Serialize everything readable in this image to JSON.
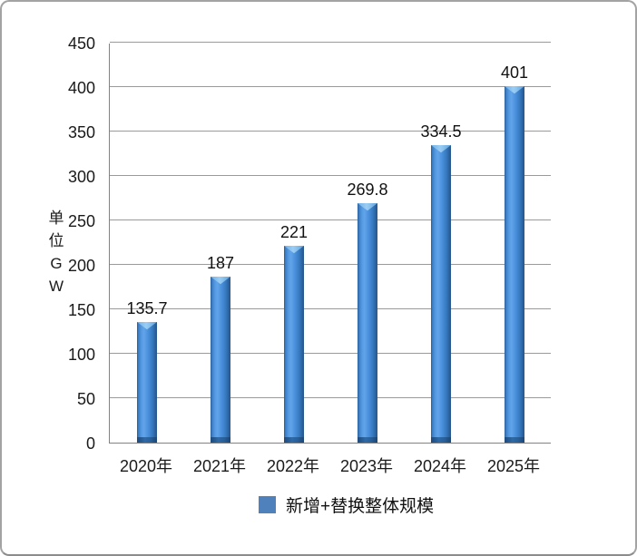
{
  "chart_data": {
    "type": "bar",
    "categories": [
      "2020年",
      "2021年",
      "2022年",
      "2023年",
      "2024年",
      "2025年"
    ],
    "values": [
      135.7,
      187,
      221,
      269.8,
      334.5,
      401
    ],
    "value_labels": [
      "135.7",
      "187",
      "221",
      "269.8",
      "334.5",
      "401"
    ],
    "title": "",
    "xlabel": "",
    "ylabel": "单位GW",
    "ylim": [
      0,
      450
    ],
    "yticks": [
      0,
      50,
      100,
      150,
      200,
      250,
      300,
      350,
      400,
      450
    ],
    "grid": true,
    "legend_label": "新增+替换整体规模",
    "legend_position": "bottom",
    "colors": {
      "bar_main": "#3f87d3",
      "bar_highlight": "#9bcdf4",
      "bar_edge_dark": "#27568d",
      "bar_base_dark": "#1d4a7c",
      "legend_swatch": "#4f81bd",
      "gridline": "#9a9a9a",
      "axis_line": "#828282",
      "text": "#1a1a1a"
    }
  }
}
